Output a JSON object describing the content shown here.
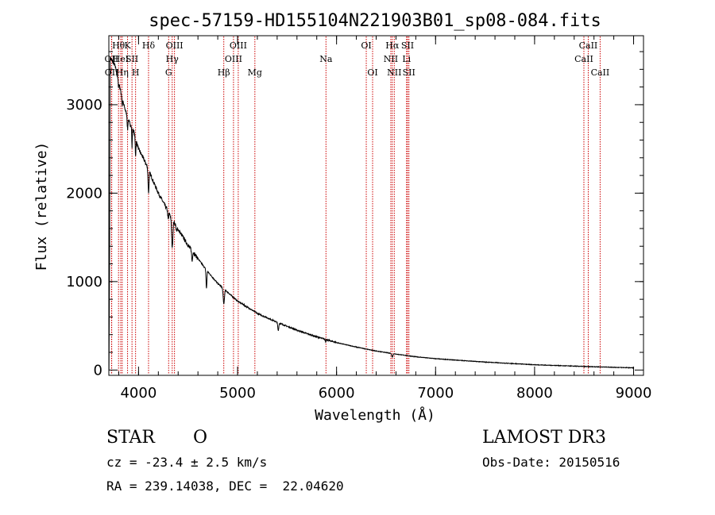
{
  "chart_data": {
    "type": "line",
    "title": "spec-57159-HD155104N221903B01_sp08-084.fits",
    "xlabel": "Wavelength (Å)",
    "ylabel": "Flux (relative)",
    "xlim": [
      3700,
      9100
    ],
    "ylim": [
      -60,
      3780
    ],
    "x_ticks": [
      4000,
      5000,
      6000,
      7000,
      8000,
      9000
    ],
    "x_tick_labels": [
      "4000",
      "5000",
      "6000",
      "7000",
      "8000",
      "9000"
    ],
    "y_ticks": [
      0,
      1000,
      2000,
      3000
    ],
    "y_tick_labels": [
      "0",
      "1000",
      "2000",
      "3000"
    ],
    "x_minor_step": 200,
    "y_minor_step": 200,
    "grid": false,
    "continuum": {
      "x": [
        3700,
        3760,
        3800,
        3850,
        3900,
        3950,
        4000,
        4050,
        4100,
        4150,
        4200,
        4300,
        4400,
        4500,
        4600,
        4700,
        4800,
        4900,
        5000,
        5200,
        5400,
        5600,
        5800,
        6000,
        6200,
        6400,
        6600,
        6800,
        7000,
        7500,
        8000,
        8500,
        9000,
        9100
      ],
      "y": [
        3550,
        3450,
        3250,
        3000,
        2820,
        2700,
        2500,
        2390,
        2270,
        2130,
        2000,
        1790,
        1590,
        1410,
        1260,
        1110,
        980,
        880,
        780,
        640,
        540,
        450,
        375,
        310,
        260,
        215,
        180,
        150,
        128,
        90,
        60,
        40,
        25,
        22
      ]
    },
    "absorption_lines": [
      {
        "center": 3797,
        "depth": 60,
        "width": 4
      },
      {
        "center": 3835,
        "depth": 90,
        "width": 4
      },
      {
        "center": 3889,
        "depth": 140,
        "width": 5
      },
      {
        "center": 3934,
        "depth": 220,
        "width": 4
      },
      {
        "center": 3970,
        "depth": 190,
        "width": 5
      },
      {
        "center": 4101,
        "depth": 260,
        "width": 7
      },
      {
        "center": 4300,
        "depth": 90,
        "width": 6
      },
      {
        "center": 4340,
        "depth": 320,
        "width": 9
      },
      {
        "center": 4384,
        "depth": 60,
        "width": 6
      },
      {
        "center": 4541,
        "depth": 120,
        "width": 6
      },
      {
        "center": 4686,
        "depth": 210,
        "width": 6
      },
      {
        "center": 4861,
        "depth": 170,
        "width": 9
      },
      {
        "center": 5411,
        "depth": 90,
        "width": 7
      },
      {
        "center": 5890,
        "depth": 25,
        "width": 4
      },
      {
        "center": 6563,
        "depth": 40,
        "width": 8
      }
    ],
    "line_markers": [
      {
        "x": 3727,
        "label": "OII",
        "row": 1
      },
      {
        "x": 3729,
        "label": "OII",
        "row": 2
      },
      {
        "x": 3798,
        "label": "Hθ",
        "row": 0
      },
      {
        "x": 3820,
        "label": "HeI",
        "row": 1
      },
      {
        "x": 3835,
        "label": "Hη",
        "row": 2
      },
      {
        "x": 3889,
        "label": "K",
        "row": 0
      },
      {
        "x": 3934,
        "label": "SII",
        "row": 1
      },
      {
        "x": 3970,
        "label": "H",
        "row": 2
      },
      {
        "x": 4101,
        "label": "Hδ",
        "row": 0
      },
      {
        "x": 4304,
        "label": "G",
        "row": 2
      },
      {
        "x": 4340,
        "label": "Hγ",
        "row": 1
      },
      {
        "x": 4363,
        "label": "OIII",
        "row": 0
      },
      {
        "x": 4861,
        "label": "Hβ",
        "row": 2
      },
      {
        "x": 4959,
        "label": "OIII",
        "row": 1
      },
      {
        "x": 5007,
        "label": "OIII",
        "row": 0
      },
      {
        "x": 5175,
        "label": "Mg",
        "row": 2
      },
      {
        "x": 5893,
        "label": "Na",
        "row": 1
      },
      {
        "x": 6300,
        "label": "OI",
        "row": 0
      },
      {
        "x": 6364,
        "label": "OI",
        "row": 2
      },
      {
        "x": 6548,
        "label": "NII",
        "row": 1
      },
      {
        "x": 6563,
        "label": "Hα",
        "row": 0
      },
      {
        "x": 6583,
        "label": "NII",
        "row": 2
      },
      {
        "x": 6707,
        "label": "Li",
        "row": 1
      },
      {
        "x": 6717,
        "label": "SII",
        "row": 0
      },
      {
        "x": 6731,
        "label": "SII",
        "row": 2
      },
      {
        "x": 8498,
        "label": "CaII",
        "row": 1
      },
      {
        "x": 8542,
        "label": "CaII",
        "row": 0
      },
      {
        "x": 8662,
        "label": "CaII",
        "row": 2
      }
    ]
  },
  "footer": {
    "object_class": "STAR",
    "subclass": "O",
    "survey": "LAMOST DR3",
    "redshift": "cz = -23.4 ± 2.5 km/s",
    "obs_date": "Obs-Date: 20150516",
    "coords": "RA = 239.14038, DEC =  22.04620"
  },
  "colors": {
    "spectrum": "#000000",
    "marker": "#cc0000",
    "axis": "#000000",
    "background": "#ffffff"
  }
}
